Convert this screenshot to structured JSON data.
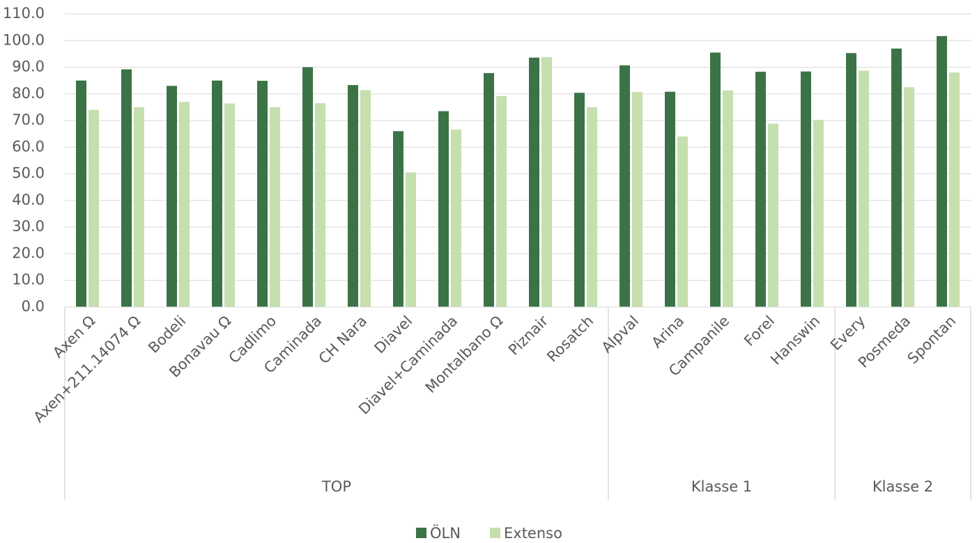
{
  "chart_data": {
    "type": "bar",
    "groups": [
      {
        "label": "TOP",
        "categories": [
          "Axen Ω",
          "Axen+211.14074 Ω",
          "Bodeli",
          "Bonavau Ω",
          "Cadlimo",
          "Caminada",
          "CH Nara",
          "Diavel",
          "Diavel+Caminada",
          "Montalbano Ω",
          "Piznair",
          "Rosatch"
        ]
      },
      {
        "label": "Klasse 1",
        "categories": [
          "Alpval",
          "Arina",
          "Campanile",
          "Forel",
          "Hanswin"
        ]
      },
      {
        "label": "Klasse 2",
        "categories": [
          "Every",
          "Posmeda",
          "Spontan"
        ]
      }
    ],
    "series": [
      {
        "name": "ÖLN",
        "color": "#3b7346",
        "values": [
          85,
          89.2,
          83,
          85,
          84.9,
          90,
          83.3,
          66,
          73.5,
          87.8,
          93.6,
          80.4,
          90.7,
          80.8,
          95.5,
          88.3,
          88.4,
          95.3,
          97,
          101.7
        ]
      },
      {
        "name": "Extenso",
        "color": "#c5dfae",
        "values": [
          74,
          75,
          77,
          76.4,
          75,
          76.5,
          81.4,
          50.5,
          66.6,
          79.2,
          93.8,
          75,
          80.7,
          64,
          81.3,
          68.8,
          70.2,
          88.7,
          82.5,
          88
        ]
      }
    ],
    "ylim": [
      0,
      110
    ],
    "yticks": [
      {
        "value": 0,
        "label": "0.0"
      },
      {
        "value": 10,
        "label": "10.0"
      },
      {
        "value": 20,
        "label": "20.0"
      },
      {
        "value": 30,
        "label": "30.0"
      },
      {
        "value": 40,
        "label": "40.0"
      },
      {
        "value": 50,
        "label": "50.0"
      },
      {
        "value": 60,
        "label": "60.0"
      },
      {
        "value": 70,
        "label": "70.0"
      },
      {
        "value": 80,
        "label": "80.0"
      },
      {
        "value": 90,
        "label": "90.0"
      },
      {
        "value": 100,
        "label": "100.0"
      },
      {
        "value": 110,
        "label": "110.0"
      }
    ],
    "grid": true,
    "legend": "bottom"
  }
}
